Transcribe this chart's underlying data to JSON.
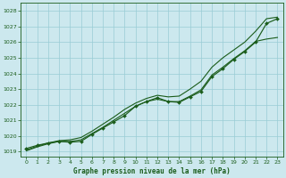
{
  "xlabel": "Graphe pression niveau de la mer (hPa)",
  "ylim": [
    1018.7,
    1028.5
  ],
  "xlim": [
    -0.5,
    23.5
  ],
  "yticks": [
    1019,
    1020,
    1021,
    1022,
    1023,
    1024,
    1025,
    1026,
    1027,
    1028
  ],
  "xticks": [
    0,
    1,
    2,
    3,
    4,
    5,
    6,
    7,
    8,
    9,
    10,
    11,
    12,
    13,
    14,
    15,
    16,
    17,
    18,
    19,
    20,
    21,
    22,
    23
  ],
  "bg_color": "#cce8ee",
  "grid_color": "#99ccd5",
  "line_color": "#1a5c1a",
  "series_marker": [
    1019.2,
    1019.4,
    1019.55,
    1019.65,
    1019.6,
    1019.65,
    1020.1,
    1020.5,
    1020.9,
    1021.3,
    1021.9,
    1022.2,
    1022.45,
    1022.2,
    1022.15,
    1022.5,
    1022.85,
    1023.8,
    1024.3,
    1024.9,
    1025.4,
    1026.0,
    1027.2,
    1027.5
  ],
  "series_smooth_top": [
    1019.1,
    1019.35,
    1019.55,
    1019.7,
    1019.75,
    1019.9,
    1020.3,
    1020.75,
    1021.2,
    1021.7,
    1022.1,
    1022.4,
    1022.6,
    1022.5,
    1022.55,
    1023.0,
    1023.5,
    1024.4,
    1025.0,
    1025.5,
    1026.0,
    1026.7,
    1027.5,
    1027.6
  ],
  "series_smooth_mid": [
    1019.05,
    1019.3,
    1019.5,
    1019.65,
    1019.65,
    1019.75,
    1020.15,
    1020.55,
    1021.0,
    1021.45,
    1021.9,
    1022.2,
    1022.35,
    1022.2,
    1022.2,
    1022.55,
    1022.95,
    1023.9,
    1024.4,
    1024.95,
    1025.45,
    1026.05,
    1026.2,
    1026.3
  ]
}
